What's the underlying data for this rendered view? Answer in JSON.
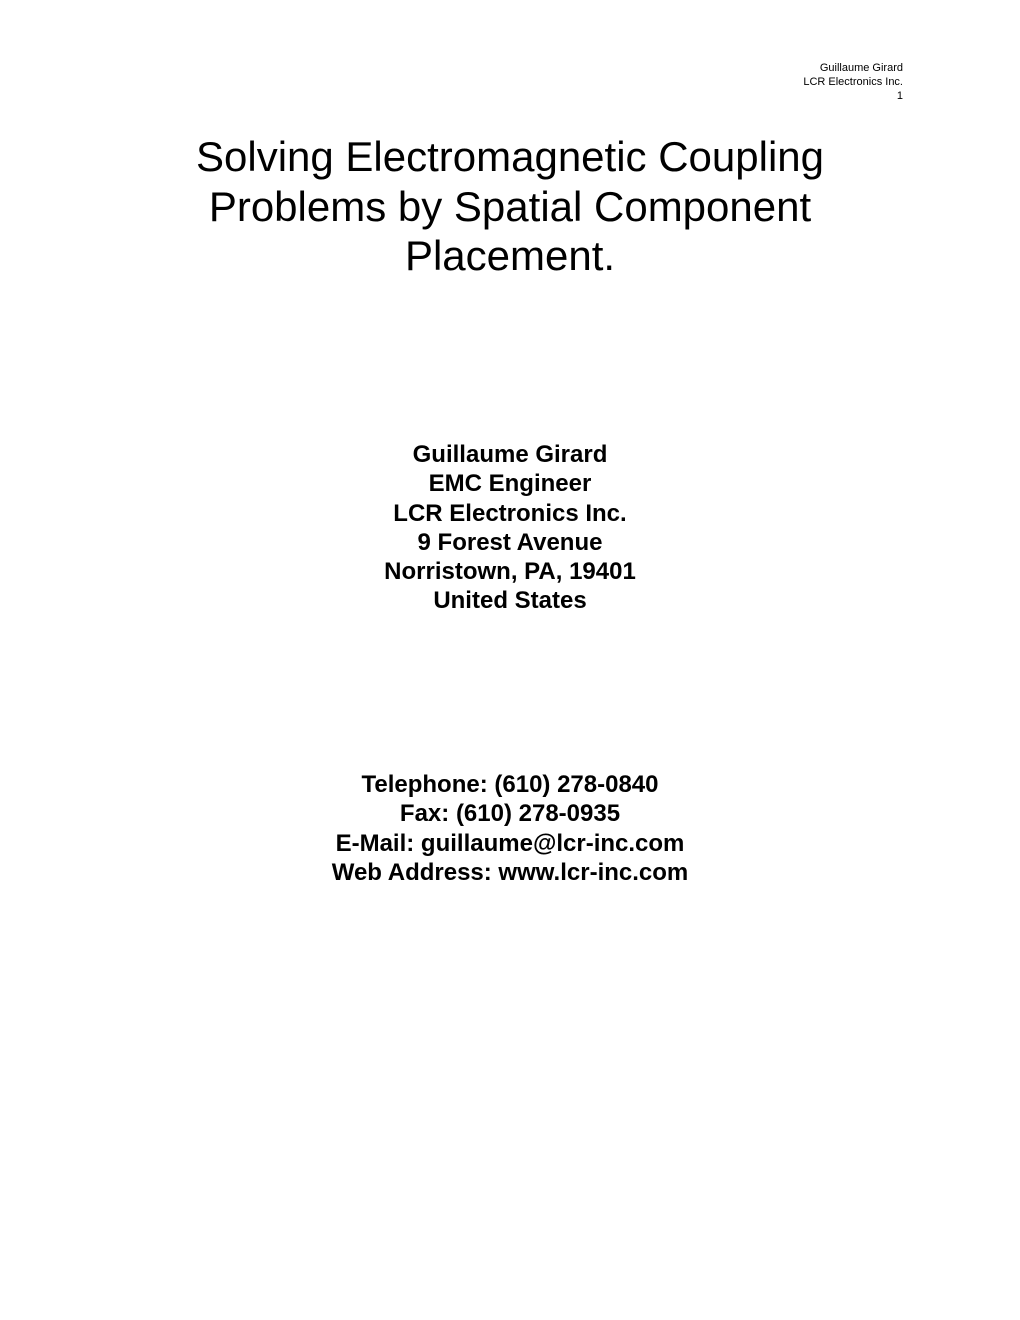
{
  "header": {
    "line1": "Guillaume Girard",
    "line2": "LCR Electronics Inc.",
    "line3": "1"
  },
  "title": {
    "line1": "Solving Electromagnetic Coupling",
    "line2": "Problems by Spatial Component",
    "line3": "Placement."
  },
  "author": {
    "name": "Guillaume Girard",
    "role": "EMC Engineer",
    "company": "LCR Electronics Inc.",
    "street": "9 Forest Avenue",
    "city_state_zip": "Norristown, PA, 19401",
    "country": "United States"
  },
  "contact": {
    "telephone": "Telephone: (610) 278-0840",
    "fax": "Fax: (610) 278-0935",
    "email": "E-Mail: guillaume@lcr-inc.com",
    "web": "Web Address: www.lcr-inc.com"
  },
  "style": {
    "background_color": "#ffffff",
    "text_color": "#000000",
    "header_fontsize": 11,
    "title_fontsize": 42,
    "body_fontsize": 24,
    "font_family": "Arial"
  }
}
